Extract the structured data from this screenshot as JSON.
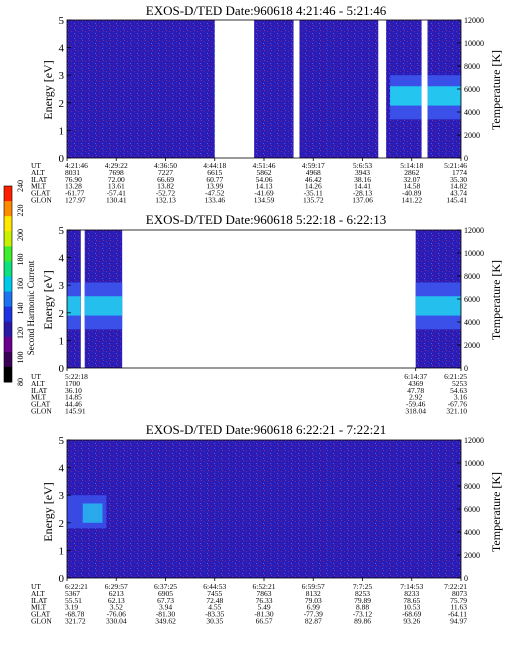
{
  "chart_data": [
    {
      "type": "heatmap",
      "title": "EXOS-D/TED   Date:960618   4:21:46 - 5:21:46",
      "ylabel": "Energy [eV]",
      "y2label": "Temperature [K]",
      "ylim": [
        0,
        5
      ],
      "y2lim": [
        0,
        12000
      ],
      "yticks": [
        "0",
        "1",
        "2",
        "3",
        "4",
        "5"
      ],
      "y2ticks": [
        "0",
        "2000",
        "4000",
        "6000",
        "8000",
        "10000",
        "12000"
      ],
      "data_gaps": [
        [
          0.375,
          0.475
        ],
        [
          0.575,
          0.59
        ],
        [
          0.79,
          0.81
        ],
        [
          0.9,
          0.915
        ]
      ],
      "bright_band": {
        "from_fraction": 0.82,
        "energy_center": 2.2
      },
      "table": {
        "row_labels": [
          "UT",
          "ALT",
          "ILAT",
          "MLT",
          "GLAT",
          "GLON"
        ],
        "columns": [
          [
            "4:21:46",
            "8031",
            "76.90",
            "13.28",
            "-61.77",
            "127.97"
          ],
          [
            "4:29:22",
            "7698",
            "72.00",
            "13.61",
            "-57.41",
            "130.41"
          ],
          [
            "4:36:50",
            "7227",
            "66.69",
            "13.82",
            "-52.72",
            "132.13"
          ],
          [
            "4:44:18",
            "6615",
            "60.77",
            "13.99",
            "-47.52",
            "133.46"
          ],
          [
            "4:51:46",
            "5862",
            "54.06",
            "14.13",
            "-41.69",
            "134.59"
          ],
          [
            "4:59:17",
            "4968",
            "46.42",
            "14.26",
            "-35.11",
            "135.72"
          ],
          [
            "5:6:53",
            "3943",
            "38.16",
            "14.41",
            "-28.13",
            "137.06"
          ],
          [
            "5:14:18",
            "2862",
            "32.07",
            "14.58",
            "-40.89",
            "141.22"
          ],
          [
            "5:21:46",
            "1774",
            "35.30",
            "14.82",
            "43.74",
            "145.41"
          ]
        ]
      }
    },
    {
      "type": "heatmap",
      "title": "EXOS-D/TED   Date:960618   5:22:18 - 6:22:13",
      "ylabel": "Energy [eV]",
      "y2label": "Temperature [K]",
      "ylim": [
        0,
        5
      ],
      "y2lim": [
        0,
        12000
      ],
      "yticks": [
        "0",
        "1",
        "2",
        "3",
        "4",
        "5"
      ],
      "y2ticks": [
        "0",
        "2000",
        "4000",
        "6000",
        "8000",
        "10000",
        "12000"
      ],
      "data_segments": [
        [
          0.0,
          0.035
        ],
        [
          0.045,
          0.14
        ],
        [
          0.885,
          1.0
        ]
      ],
      "table": {
        "row_labels": [
          "UT",
          "ALT",
          "ILAT",
          "MLT",
          "GLAT",
          "GLON"
        ],
        "columns": [
          [
            "5:22:18",
            "1700",
            "36.10",
            "14.85",
            "44.46",
            "145.91"
          ],
          [
            "6:14:37",
            "4369",
            "47.78",
            "2.92",
            "-59.46",
            "318.04"
          ],
          [
            "6:21:25",
            "5253",
            "54.63",
            "3.16",
            "-67.76",
            "321.10"
          ]
        ],
        "column_positions": [
          0.0,
          0.885,
          1.0
        ]
      }
    },
    {
      "type": "heatmap",
      "title": "EXOS-D/TED   Date:960618   6:22:21 - 7:22:21",
      "ylabel": "Energy [eV]",
      "y2label": "Temperature [K]",
      "ylim": [
        0,
        5
      ],
      "y2lim": [
        0,
        12000
      ],
      "yticks": [
        "0",
        "1",
        "2",
        "3",
        "4",
        "5"
      ],
      "y2ticks": [
        "0",
        "2000",
        "4000",
        "6000",
        "8000",
        "10000",
        "12000"
      ],
      "bright_patch": {
        "to_fraction": 0.1,
        "energy_center": 2.4
      },
      "table": {
        "row_labels": [
          "UT",
          "ALT",
          "ILAT",
          "MLT",
          "GLAT",
          "GLON"
        ],
        "columns": [
          [
            "6:22:21",
            "5367",
            "55.51",
            "3.19",
            "-68.78",
            "321.72"
          ],
          [
            "6:29:57",
            "6213",
            "62.13",
            "3.52",
            "-76.06",
            "330.04"
          ],
          [
            "6:37:25",
            "6905",
            "67.73",
            "3.94",
            "-81.30",
            "349.62"
          ],
          [
            "6:44:53",
            "7455",
            "72.48",
            "4.55",
            "-83.35",
            "30.35"
          ],
          [
            "6:52:21",
            "7863",
            "76.33",
            "5.49",
            "-81.30",
            "66.57"
          ],
          [
            "6:59:57",
            "8132",
            "79.03",
            "6.99",
            "-77.39",
            "82.87"
          ],
          [
            "7:7:25",
            "8253",
            "79.89",
            "8.88",
            "-73.12",
            "89.86"
          ],
          [
            "7:14:53",
            "8233",
            "78.65",
            "10.53",
            "-68.69",
            "93.26"
          ],
          [
            "7:22:21",
            "8073",
            "75.79",
            "11.63",
            "-64.11",
            "94.97"
          ]
        ]
      }
    }
  ],
  "colorbar": {
    "label": "Second Harmonic Current",
    "ticks": [
      "80",
      "100",
      "120",
      "140",
      "160",
      "180",
      "200",
      "220",
      "240"
    ],
    "range": [
      80,
      240
    ],
    "colors": [
      "#000000",
      "#3a0055",
      "#6a0090",
      "#2b1aa8",
      "#1f33e0",
      "#1e74f0",
      "#00c8e8",
      "#10e080",
      "#40ee30",
      "#c8f000",
      "#ffe800",
      "#ff8c00",
      "#ff1e00"
    ]
  },
  "colors": {
    "background_fill": "#2a1cb4",
    "mid_fill": "#3a50e8",
    "bright_fill": "#22d2ee"
  }
}
